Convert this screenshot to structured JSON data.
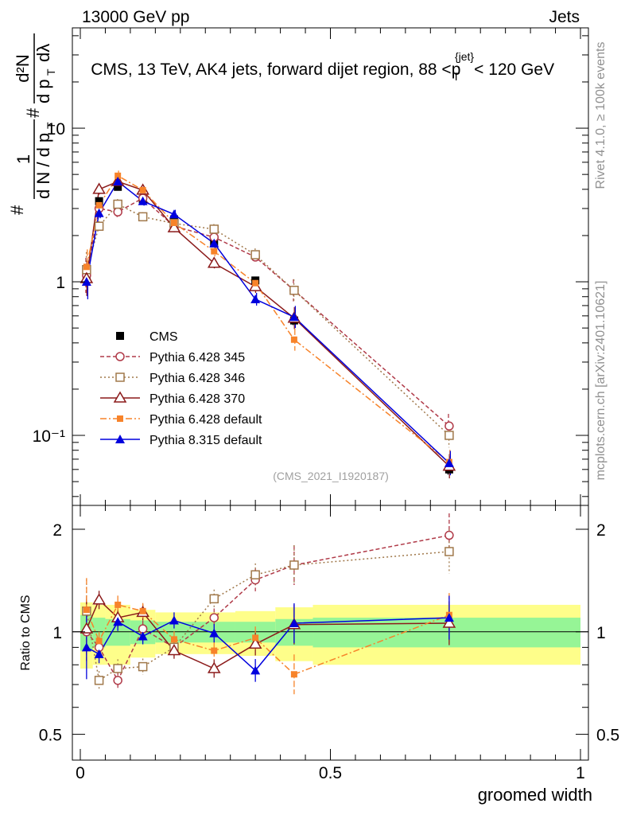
{
  "header": {
    "left": "13000 GeV pp",
    "right": "Jets"
  },
  "side_text": {
    "rivet": "Rivet 4.1.0, ≥ 100k events",
    "mcplots": "mcplots.cern.ch [arXiv:2401.10621]"
  },
  "main_title": {
    "prefix": "CMS, 13 TeV, AK4 jets, forward dijet region, 88 <",
    "p": "p",
    "sub": "T",
    "sup": "{jet}",
    "suffix": "< 120 GeV"
  },
  "watermark": "(CMS_2021_I1920187)",
  "ylabel_upper": {
    "hash": "#",
    "one": "1",
    "dN": "d N / d p",
    "T": "T",
    "hash2": "#",
    "d2N": "d²N",
    "dp": "d p",
    "dlambda": "dλ"
  },
  "ylabel_lower": "Ratio to CMS",
  "xlabel": "groomed width",
  "upper_ticks": [
    "10",
    "1",
    "10⁻¹"
  ],
  "lower_ticks": [
    "2",
    "1",
    "0.5"
  ],
  "x_ticks": [
    "0",
    "0.5",
    "1"
  ],
  "legend": [
    "CMS",
    "Pythia 6.428 345",
    "Pythia 6.428 346",
    "Pythia 6.428 370",
    "Pythia 6.428 default",
    "Pythia 8.315 default"
  ],
  "colors": {
    "cms": "#000000",
    "p345": "#b03a48",
    "p346": "#a0784a",
    "p370": "#8b1a1a",
    "pdefault": "#f7832a",
    "p8": "#0000dd",
    "band_yellow": "#fefe8a",
    "band_green": "#96f596"
  },
  "chart_data": {
    "type": "line",
    "x_label": "groomed width",
    "xlim": [
      0,
      1
    ],
    "upper": {
      "yscale": "log",
      "ylim": [
        0.035,
        45
      ]
    },
    "lower": {
      "yscale": "log",
      "ylim": [
        0.42,
        2.35
      ],
      "ylabel": "Ratio to CMS"
    },
    "x": [
      0.0125,
      0.0375,
      0.075,
      0.125,
      0.1875,
      0.2675,
      0.35,
      0.4275,
      0.7375
    ],
    "series": [
      {
        "name": "CMS",
        "values": [
          1.1,
          3.35,
          4.15,
          3.45,
          2.55,
          1.78,
          1.02,
          0.56,
          0.06
        ]
      },
      {
        "name": "Pythia 6.428 345",
        "values": [
          1.1,
          3.0,
          2.85,
          3.5,
          2.3,
          1.95,
          1.45,
          0.88,
          0.115
        ]
      },
      {
        "name": "Pythia 6.428 346",
        "values": [
          1.2,
          2.3,
          3.2,
          2.65,
          2.4,
          2.2,
          1.5,
          0.88,
          0.1
        ]
      },
      {
        "name": "Pythia 6.428 370",
        "values": [
          1.05,
          4.0,
          4.5,
          3.95,
          2.25,
          1.32,
          0.93,
          0.58,
          0.063
        ]
      },
      {
        "name": "Pythia 6.428 default",
        "values": [
          1.25,
          3.15,
          4.9,
          3.95,
          2.42,
          1.58,
          0.98,
          0.42,
          0.067
        ]
      },
      {
        "name": "Pythia 8.315 default",
        "values": [
          1.0,
          2.8,
          4.5,
          3.35,
          2.75,
          1.78,
          0.77,
          0.59,
          0.066
        ]
      }
    ],
    "errors_rel": [
      0.3,
      0.08,
      0.08,
      0.07,
      0.07,
      0.08,
      0.1,
      0.18,
      0.2
    ],
    "ratios": [
      {
        "name": "Pythia 6.428 345",
        "values": [
          1.0,
          0.9,
          0.72,
          1.02,
          0.9,
          1.1,
          1.42,
          1.57,
          1.92
        ]
      },
      {
        "name": "Pythia 6.428 346",
        "values": [
          1.15,
          0.72,
          0.78,
          0.79,
          0.9,
          1.25,
          1.47,
          1.57,
          1.72
        ]
      },
      {
        "name": "Pythia 6.428 370",
        "values": [
          1.02,
          1.24,
          1.1,
          1.14,
          0.88,
          0.78,
          0.92,
          1.05,
          1.06
        ]
      },
      {
        "name": "Pythia 6.428 default",
        "values": [
          1.16,
          0.94,
          1.2,
          1.15,
          0.95,
          0.88,
          0.96,
          0.75,
          1.12
        ]
      },
      {
        "name": "Pythia 8.315 default",
        "values": [
          0.9,
          0.86,
          1.07,
          0.97,
          1.08,
          0.99,
          0.77,
          1.06,
          1.1
        ]
      }
    ],
    "bands": {
      "edges": [
        0,
        0.025,
        0.05,
        0.1,
        0.15,
        0.225,
        0.31,
        0.39,
        0.465,
        1.0
      ],
      "green": [
        0.12,
        0.1,
        0.09,
        0.08,
        0.07,
        0.07,
        0.07,
        0.09,
        0.1
      ],
      "yellow": [
        0.22,
        0.2,
        0.2,
        0.16,
        0.14,
        0.14,
        0.15,
        0.18,
        0.2
      ]
    }
  }
}
